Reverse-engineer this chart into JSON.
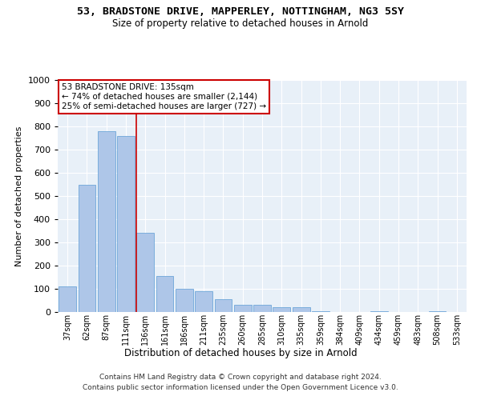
{
  "title": "53, BRADSTONE DRIVE, MAPPERLEY, NOTTINGHAM, NG3 5SY",
  "subtitle": "Size of property relative to detached houses in Arnold",
  "xlabel": "Distribution of detached houses by size in Arnold",
  "ylabel": "Number of detached properties",
  "bin_labels": [
    "37sqm",
    "62sqm",
    "87sqm",
    "111sqm",
    "136sqm",
    "161sqm",
    "186sqm",
    "211sqm",
    "235sqm",
    "260sqm",
    "285sqm",
    "310sqm",
    "335sqm",
    "359sqm",
    "384sqm",
    "409sqm",
    "434sqm",
    "459sqm",
    "483sqm",
    "508sqm",
    "533sqm"
  ],
  "bar_heights": [
    110,
    550,
    780,
    760,
    340,
    155,
    100,
    90,
    55,
    30,
    30,
    20,
    20,
    5,
    0,
    0,
    5,
    0,
    0,
    5,
    0
  ],
  "bar_color": "#aec6e8",
  "bar_edge_color": "#5b9bd5",
  "property_line_color": "#cc0000",
  "annotation_text": "53 BRADSTONE DRIVE: 135sqm\n← 74% of detached houses are smaller (2,144)\n25% of semi-detached houses are larger (727) →",
  "annotation_box_color": "#ffffff",
  "annotation_box_edge_color": "#cc0000",
  "ylim": [
    0,
    1000
  ],
  "yticks": [
    0,
    100,
    200,
    300,
    400,
    500,
    600,
    700,
    800,
    900,
    1000
  ],
  "bg_color": "#e8f0f8",
  "footer_line1": "Contains HM Land Registry data © Crown copyright and database right 2024.",
  "footer_line2": "Contains public sector information licensed under the Open Government Licence v3.0."
}
